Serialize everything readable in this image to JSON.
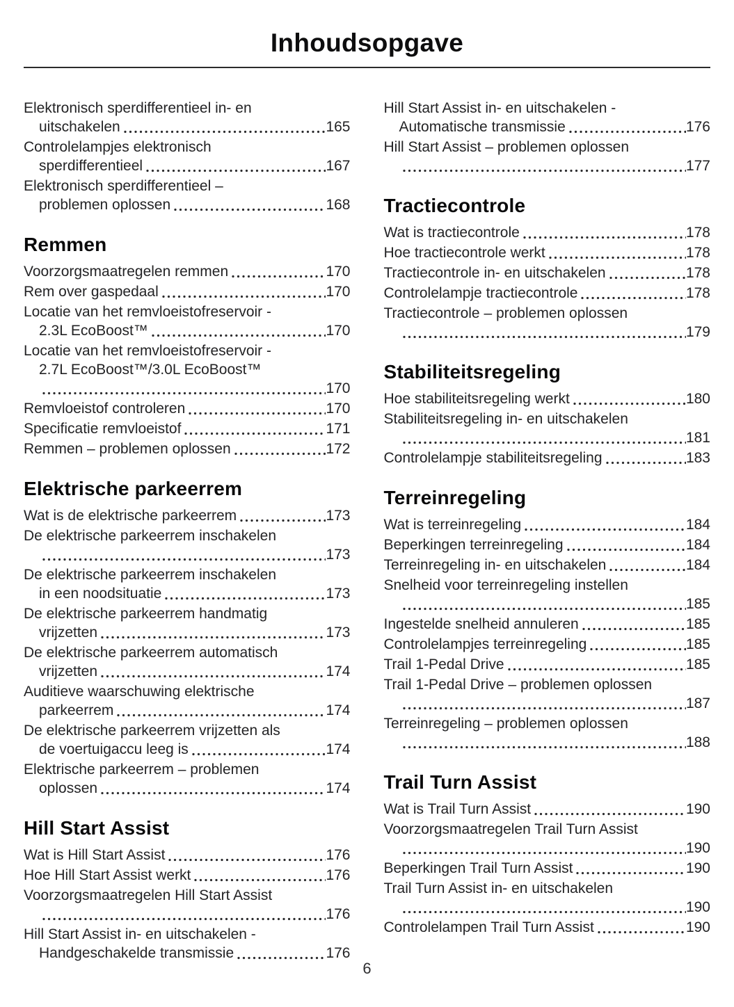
{
  "page": {
    "title": "Inhoudsopgave",
    "footer_page_number": "6",
    "text_color": "#232325",
    "heading_color": "#0a0a0b",
    "rule_color": "#2b2b2b",
    "background_color": "#ffffff"
  },
  "toc": {
    "columns": [
      {
        "sections": [
          {
            "header": null,
            "entries": [
              {
                "lines": [
                  "Elektronisch sperdifferentieel in- en",
                  "uitschakelen"
                ],
                "page": "165"
              },
              {
                "lines": [
                  "Controlelampjes elektronisch",
                  "sperdifferentieel"
                ],
                "page": "167"
              },
              {
                "lines": [
                  "Elektronisch sperdifferentieel –",
                  "problemen oplossen"
                ],
                "page": "168"
              }
            ]
          },
          {
            "header": "Remmen",
            "entries": [
              {
                "lines": [
                  "Voorzorgsmaatregelen remmen"
                ],
                "page": "170"
              },
              {
                "lines": [
                  "Rem over gaspedaal"
                ],
                "page": "170"
              },
              {
                "lines": [
                  "Locatie van het remvloeistofreservoir -",
                  "2.3L EcoBoost™"
                ],
                "page": "170"
              },
              {
                "lines": [
                  "Locatie van het remvloeistofreservoir -",
                  "2.7L EcoBoost™/3.0L EcoBoost™",
                  ""
                ],
                "page": "170"
              },
              {
                "lines": [
                  "Remvloeistof controleren"
                ],
                "page": "170"
              },
              {
                "lines": [
                  "Specificatie remvloeistof"
                ],
                "page": "171"
              },
              {
                "lines": [
                  "Remmen – problemen oplossen"
                ],
                "page": "172"
              }
            ]
          },
          {
            "header": "Elektrische parkeerrem",
            "entries": [
              {
                "lines": [
                  "Wat is de elektrische parkeerrem"
                ],
                "page": "173"
              },
              {
                "lines": [
                  "De elektrische parkeerrem inschakelen",
                  ""
                ],
                "page": "173"
              },
              {
                "lines": [
                  "De elektrische parkeerrem inschakelen",
                  "in een noodsituatie"
                ],
                "page": "173"
              },
              {
                "lines": [
                  "De elektrische parkeerrem handmatig",
                  "vrijzetten"
                ],
                "page": "173"
              },
              {
                "lines": [
                  "De elektrische parkeerrem automatisch",
                  "vrijzetten"
                ],
                "page": "174"
              },
              {
                "lines": [
                  "Auditieve waarschuwing elektrische",
                  "parkeerrem"
                ],
                "page": "174"
              },
              {
                "lines": [
                  "De elektrische parkeerrem vrijzetten als",
                  "de voertuigaccu leeg is"
                ],
                "page": "174"
              },
              {
                "lines": [
                  "Elektrische parkeerrem – problemen",
                  "oplossen"
                ],
                "page": "174"
              }
            ]
          },
          {
            "header": "Hill Start Assist",
            "entries": [
              {
                "lines": [
                  "Wat is Hill Start Assist"
                ],
                "page": "176"
              },
              {
                "lines": [
                  "Hoe Hill Start Assist werkt"
                ],
                "page": "176"
              },
              {
                "lines": [
                  "Voorzorgsmaatregelen Hill Start Assist",
                  ""
                ],
                "page": "176"
              },
              {
                "lines": [
                  "Hill Start Assist in- en uitschakelen -",
                  "Handgeschakelde transmissie"
                ],
                "page": "176"
              }
            ]
          }
        ]
      },
      {
        "sections": [
          {
            "header": null,
            "entries": [
              {
                "lines": [
                  "Hill Start Assist in- en uitschakelen -",
                  "Automatische transmissie"
                ],
                "page": "176"
              },
              {
                "lines": [
                  "Hill Start Assist – problemen oplossen",
                  ""
                ],
                "page": "177"
              }
            ]
          },
          {
            "header": "Tractiecontrole",
            "entries": [
              {
                "lines": [
                  "Wat is tractiecontrole"
                ],
                "page": "178"
              },
              {
                "lines": [
                  "Hoe tractiecontrole werkt"
                ],
                "page": "178"
              },
              {
                "lines": [
                  "Tractiecontrole in- en uitschakelen"
                ],
                "page": "178"
              },
              {
                "lines": [
                  "Controlelampje tractiecontrole"
                ],
                "page": "178"
              },
              {
                "lines": [
                  "Tractiecontrole – problemen oplossen",
                  ""
                ],
                "page": "179"
              }
            ]
          },
          {
            "header": "Stabiliteitsregeling",
            "entries": [
              {
                "lines": [
                  "Hoe stabiliteitsregeling werkt"
                ],
                "page": "180"
              },
              {
                "lines": [
                  "Stabiliteitsregeling in- en uitschakelen",
                  ""
                ],
                "page": "181"
              },
              {
                "lines": [
                  "Controlelampje stabiliteitsregeling"
                ],
                "page": "183"
              }
            ]
          },
          {
            "header": "Terreinregeling",
            "entries": [
              {
                "lines": [
                  "Wat is terreinregeling"
                ],
                "page": "184"
              },
              {
                "lines": [
                  "Beperkingen terreinregeling"
                ],
                "page": "184"
              },
              {
                "lines": [
                  "Terreinregeling in- en uitschakelen"
                ],
                "page": "184"
              },
              {
                "lines": [
                  "Snelheid voor terreinregeling instellen",
                  ""
                ],
                "page": "185"
              },
              {
                "lines": [
                  "Ingestelde snelheid annuleren"
                ],
                "page": "185"
              },
              {
                "lines": [
                  "Controlelampjes terreinregeling"
                ],
                "page": "185"
              },
              {
                "lines": [
                  "Trail 1-Pedal Drive"
                ],
                "page": "185"
              },
              {
                "lines": [
                  "Trail 1-Pedal Drive – problemen oplossen",
                  ""
                ],
                "page": "187"
              },
              {
                "lines": [
                  "Terreinregeling – problemen oplossen",
                  ""
                ],
                "page": "188"
              }
            ]
          },
          {
            "header": "Trail Turn Assist",
            "entries": [
              {
                "lines": [
                  "Wat is Trail Turn Assist"
                ],
                "page": "190"
              },
              {
                "lines": [
                  "Voorzorgsmaatregelen Trail Turn Assist",
                  ""
                ],
                "page": "190"
              },
              {
                "lines": [
                  "Beperkingen Trail Turn Assist"
                ],
                "page": "190"
              },
              {
                "lines": [
                  "Trail Turn Assist in- en uitschakelen",
                  ""
                ],
                "page": "190"
              },
              {
                "lines": [
                  "Controlelampen Trail Turn Assist"
                ],
                "page": "190"
              }
            ]
          }
        ]
      }
    ]
  }
}
